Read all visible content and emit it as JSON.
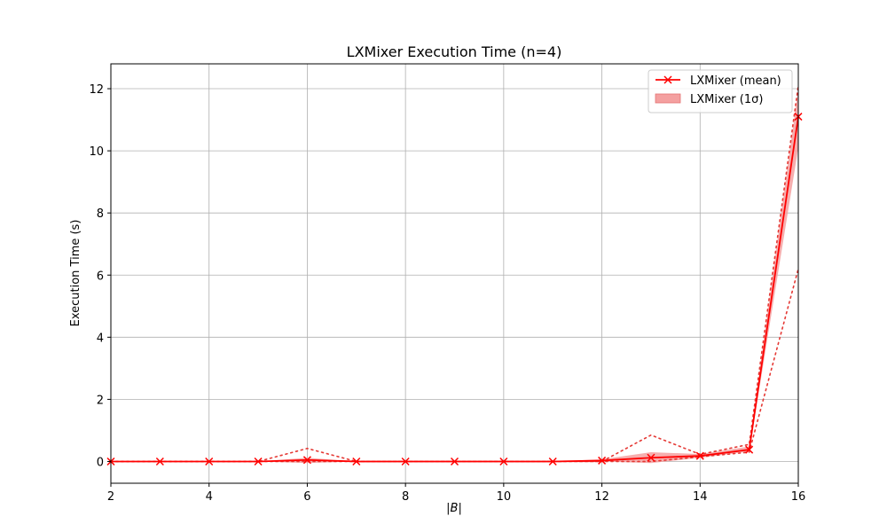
{
  "chart_data": {
    "type": "line",
    "title": "LXMixer Execution Time (n=4)",
    "xlabel": "|B|",
    "ylabel": "Execution Time (s)",
    "xlim": [
      2,
      16
    ],
    "ylim": [
      -0.7,
      12.8
    ],
    "xticks": [
      2,
      4,
      6,
      8,
      10,
      12,
      14,
      16
    ],
    "yticks": [
      0,
      2,
      4,
      6,
      8,
      10,
      12
    ],
    "grid": true,
    "legend_position": "top-right",
    "colors": {
      "mean": "#ff0000",
      "band": "#f4a0a0",
      "dotted": "#e53935"
    },
    "x": [
      2,
      3,
      4,
      5,
      6,
      7,
      8,
      9,
      10,
      11,
      12,
      13,
      14,
      15,
      16
    ],
    "series": [
      {
        "name": "LXMixer (mean)",
        "kind": "line-marker-x",
        "values": [
          0.0,
          0.0,
          0.0,
          0.0,
          0.05,
          0.0,
          0.0,
          0.0,
          0.0,
          0.0,
          0.03,
          0.12,
          0.18,
          0.38,
          11.1
        ]
      },
      {
        "name": "LXMixer (1σ)",
        "kind": "band",
        "lower": [
          0.0,
          0.0,
          0.0,
          0.0,
          -0.05,
          0.0,
          0.0,
          0.0,
          0.0,
          0.0,
          0.0,
          -0.05,
          0.12,
          0.32,
          10.1
        ],
        "upper": [
          0.0,
          0.0,
          0.0,
          0.0,
          0.12,
          0.0,
          0.0,
          0.0,
          0.0,
          0.0,
          0.07,
          0.3,
          0.24,
          0.48,
          12.0
        ]
      },
      {
        "kind": "dotted",
        "values": [
          0.0,
          0.0,
          0.0,
          0.0,
          0.42,
          0.0,
          0.0,
          0.0,
          0.0,
          0.0,
          0.0,
          0.85,
          0.23,
          0.55,
          12.1
        ]
      },
      {
        "kind": "dotted",
        "values": [
          0.0,
          0.0,
          0.0,
          0.0,
          0.0,
          0.0,
          0.0,
          0.0,
          0.0,
          0.0,
          0.0,
          0.0,
          0.15,
          0.3,
          6.2
        ]
      }
    ]
  }
}
